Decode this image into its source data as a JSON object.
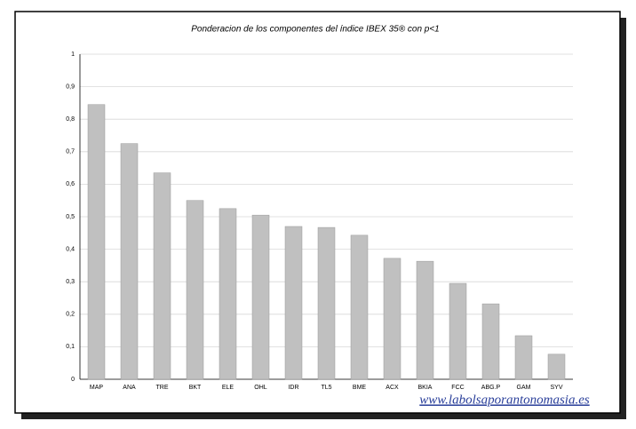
{
  "chart_data": {
    "type": "bar",
    "title": "Ponderacion de los componentes del índice IBEX 35® con p<1",
    "watermark": "www.labolsaporantonomasia.es",
    "categories": [
      "MAP",
      "ANA",
      "TRE",
      "BKT",
      "ELE",
      "OHL",
      "IDR",
      "TL5",
      "BME",
      "ACX",
      "BKIA",
      "FCC",
      "ABG.P",
      "GAM",
      "SYV"
    ],
    "values": [
      0.845,
      0.725,
      0.635,
      0.55,
      0.525,
      0.505,
      0.47,
      0.467,
      0.443,
      0.372,
      0.363,
      0.295,
      0.232,
      0.134,
      0.077
    ],
    "color": "#c0c0c0",
    "ylim": [
      0,
      1
    ],
    "yticks": [
      0,
      {
        "value": 0.1,
        "label": "0,1"
      },
      {
        "value": 0.2,
        "label": "0,2"
      },
      {
        "value": 0.3,
        "label": "0,3"
      },
      {
        "value": 0.4,
        "label": "0,4"
      },
      {
        "value": 0.5,
        "label": "0,5"
      },
      {
        "value": 0.6,
        "label": "0,6"
      },
      {
        "value": 0.7,
        "label": "0,7"
      },
      {
        "value": 0.8,
        "label": "0,8"
      },
      {
        "value": 0.9,
        "label": "0,9"
      },
      1
    ],
    "grid": true
  }
}
